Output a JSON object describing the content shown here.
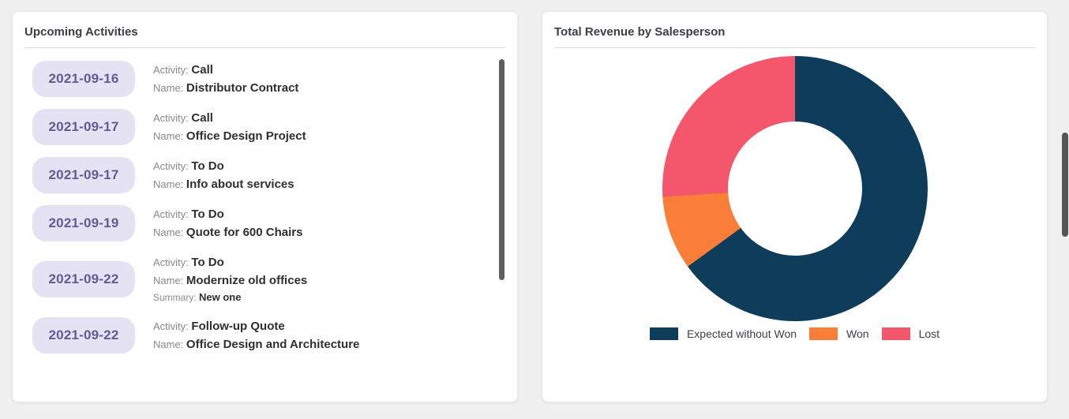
{
  "activities": {
    "title": "Upcoming Activities",
    "field_labels": {
      "activity": "Activity:",
      "name": "Name:",
      "summary": "Summary:"
    },
    "items": [
      {
        "date": "2021-09-16",
        "activity": "Call",
        "name": "Distributor Contract",
        "summary": ""
      },
      {
        "date": "2021-09-17",
        "activity": "Call",
        "name": "Office Design Project",
        "summary": ""
      },
      {
        "date": "2021-09-17",
        "activity": "To Do",
        "name": "Info about services",
        "summary": ""
      },
      {
        "date": "2021-09-19",
        "activity": "To Do",
        "name": "Quote for 600 Chairs",
        "summary": ""
      },
      {
        "date": "2021-09-22",
        "activity": "To Do",
        "name": "Modernize old offices",
        "summary": "New one"
      },
      {
        "date": "2021-09-22",
        "activity": "Follow-up Quote",
        "name": "Office Design and Architecture",
        "summary": ""
      }
    ]
  },
  "revenue": {
    "title": "Total Revenue by Salesperson"
  },
  "chart_data": {
    "type": "pie",
    "donut": true,
    "title": "Total Revenue by Salesperson",
    "labels": [
      "Expected without Won",
      "Won",
      "Lost"
    ],
    "values_percent": [
      65,
      9,
      26
    ],
    "colors": [
      "#0e3d5c",
      "#fa7d38",
      "#f4566b"
    ],
    "legend_position": "bottom"
  },
  "colors": {
    "badge_background": "#e4e2f3",
    "badge_text": "#605b93",
    "page_background": "#f0f0f0"
  }
}
